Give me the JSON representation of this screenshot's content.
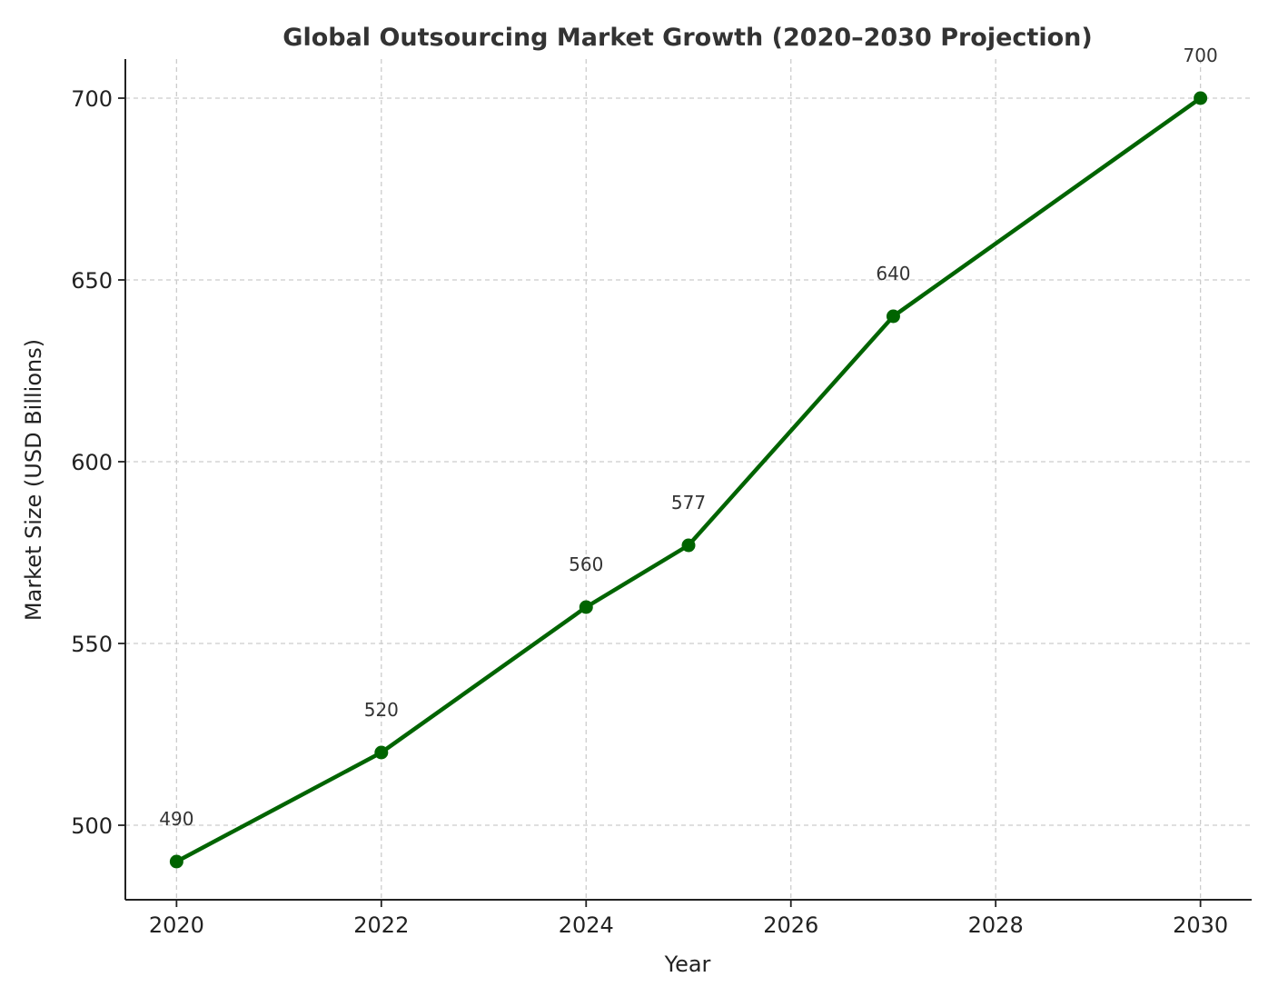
{
  "chart_data": {
    "type": "line",
    "title": "Global Outsourcing Market Growth (2020–2030 Projection)",
    "xlabel": "Year",
    "ylabel": "Market Size (USD Billions)",
    "x": [
      2020,
      2022,
      2024,
      2025,
      2027,
      2030
    ],
    "values": [
      490,
      520,
      560,
      577,
      640,
      700
    ],
    "data_labels": [
      "490",
      "520",
      "560",
      "577",
      "640",
      "700"
    ],
    "xlim": [
      2019.5,
      2030.5
    ],
    "ylim": [
      479.5,
      710.75
    ],
    "xticks": [
      2020,
      2022,
      2024,
      2026,
      2028,
      2030
    ],
    "xtick_labels": [
      "2020",
      "2022",
      "2024",
      "2026",
      "2028",
      "2030"
    ],
    "yticks": [
      500,
      550,
      600,
      650,
      700
    ],
    "ytick_labels": [
      "500",
      "550",
      "600",
      "650",
      "700"
    ],
    "grid": true,
    "marker": "circle",
    "colors": {
      "line": "#006400",
      "grid": "#cccccc",
      "title": "#333333",
      "axis": "#222222"
    }
  }
}
